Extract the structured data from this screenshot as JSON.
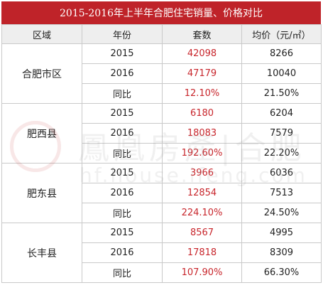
{
  "title": "2015-2016年上半年合肥住宅销量、价格对比",
  "headers": [
    "区域",
    "年份",
    "套数",
    "均价（元/㎡）"
  ],
  "regions": [
    {
      "name": "合肥市区",
      "rows": [
        {
          "year": "2015",
          "units": "42098",
          "price": "8266"
        },
        {
          "year": "2016",
          "units": "47179",
          "price": "10040"
        },
        {
          "year": "同比",
          "units": "12.10%",
          "price": "21.50%"
        }
      ]
    },
    {
      "name": "肥西县",
      "rows": [
        {
          "year": "2015",
          "units": "6180",
          "price": "6204"
        },
        {
          "year": "2016",
          "units": "18083",
          "price": "7579"
        },
        {
          "year": "同比",
          "units": "192.60%",
          "price": "22.20%"
        }
      ]
    },
    {
      "name": "肥东县",
      "rows": [
        {
          "year": "2015",
          "units": "3966",
          "price": "6036"
        },
        {
          "year": "2016",
          "units": "12854",
          "price": "7513"
        },
        {
          "year": "同比",
          "units": "224.10%",
          "price": "24.50%"
        }
      ]
    },
    {
      "name": "长丰县",
      "rows": [
        {
          "year": "2015",
          "units": "8567",
          "price": "4995"
        },
        {
          "year": "2016",
          "units": "17818",
          "price": "8309"
        },
        {
          "year": "同比",
          "units": "107.90%",
          "price": "66.30%"
        }
      ]
    }
  ],
  "watermark": {
    "line1": "鳳凰房產|合肥",
    "line2": "hf.house.ifeng.com"
  },
  "colors": {
    "title_bg": "#bf2329",
    "header_bg": "#eeeeee",
    "units_text": "#c8262c"
  }
}
